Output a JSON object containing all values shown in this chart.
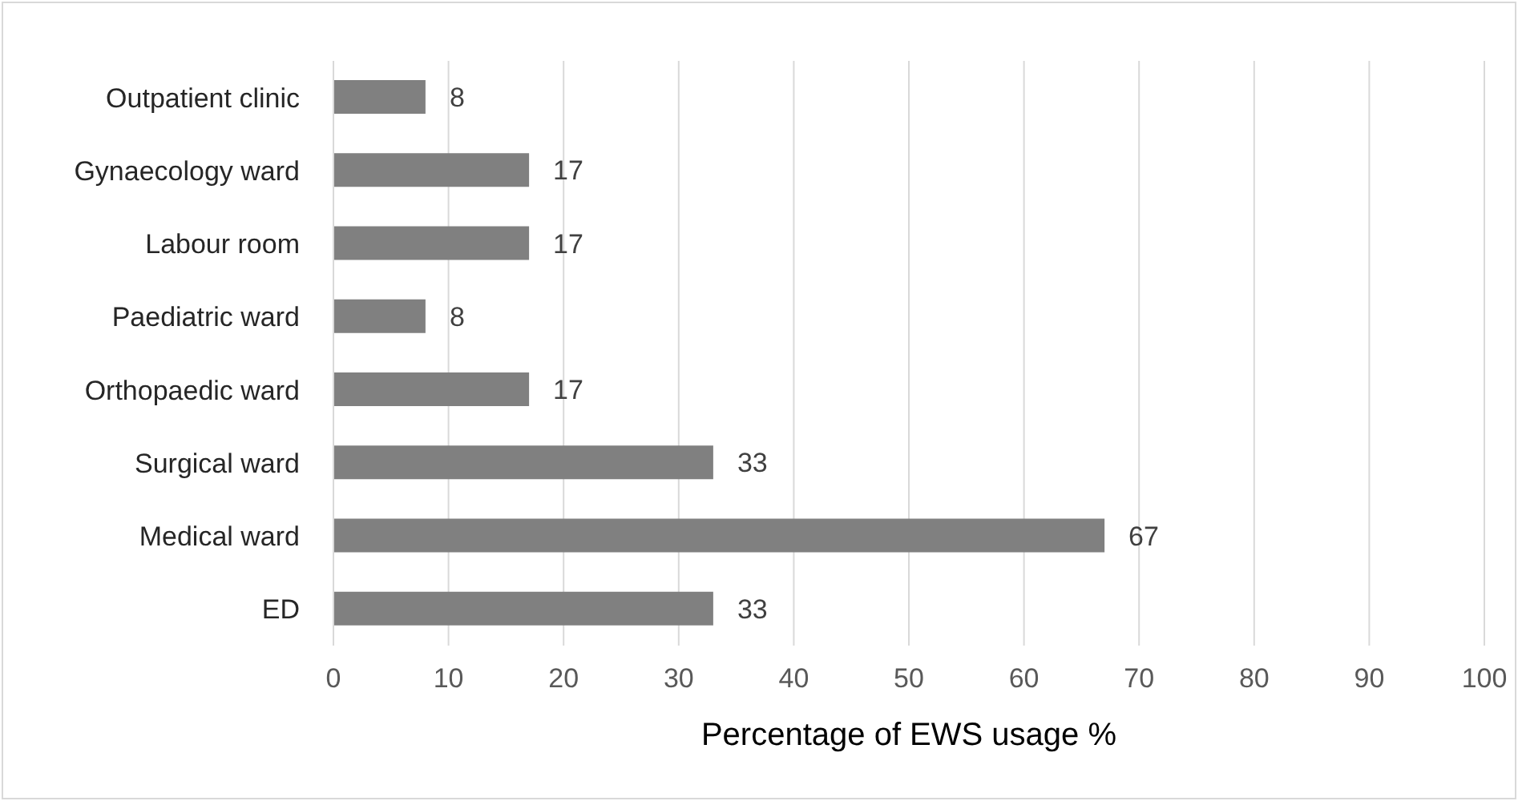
{
  "chart_data": {
    "type": "bar",
    "orientation": "horizontal",
    "categories": [
      "Outpatient clinic",
      "Gynaecology ward",
      "Labour room",
      "Paediatric ward",
      "Orthopaedic ward",
      "Surgical ward",
      "Medical ward",
      "ED"
    ],
    "values": [
      8,
      17,
      17,
      8,
      17,
      33,
      67,
      33
    ],
    "color": "#808080",
    "xlabel": "Percentage of EWS usage %",
    "xlim": [
      0,
      100
    ],
    "xticks": [
      0,
      10,
      20,
      30,
      40,
      50,
      60,
      70,
      80,
      90,
      100
    ],
    "grid": "x",
    "data_labels": true
  }
}
